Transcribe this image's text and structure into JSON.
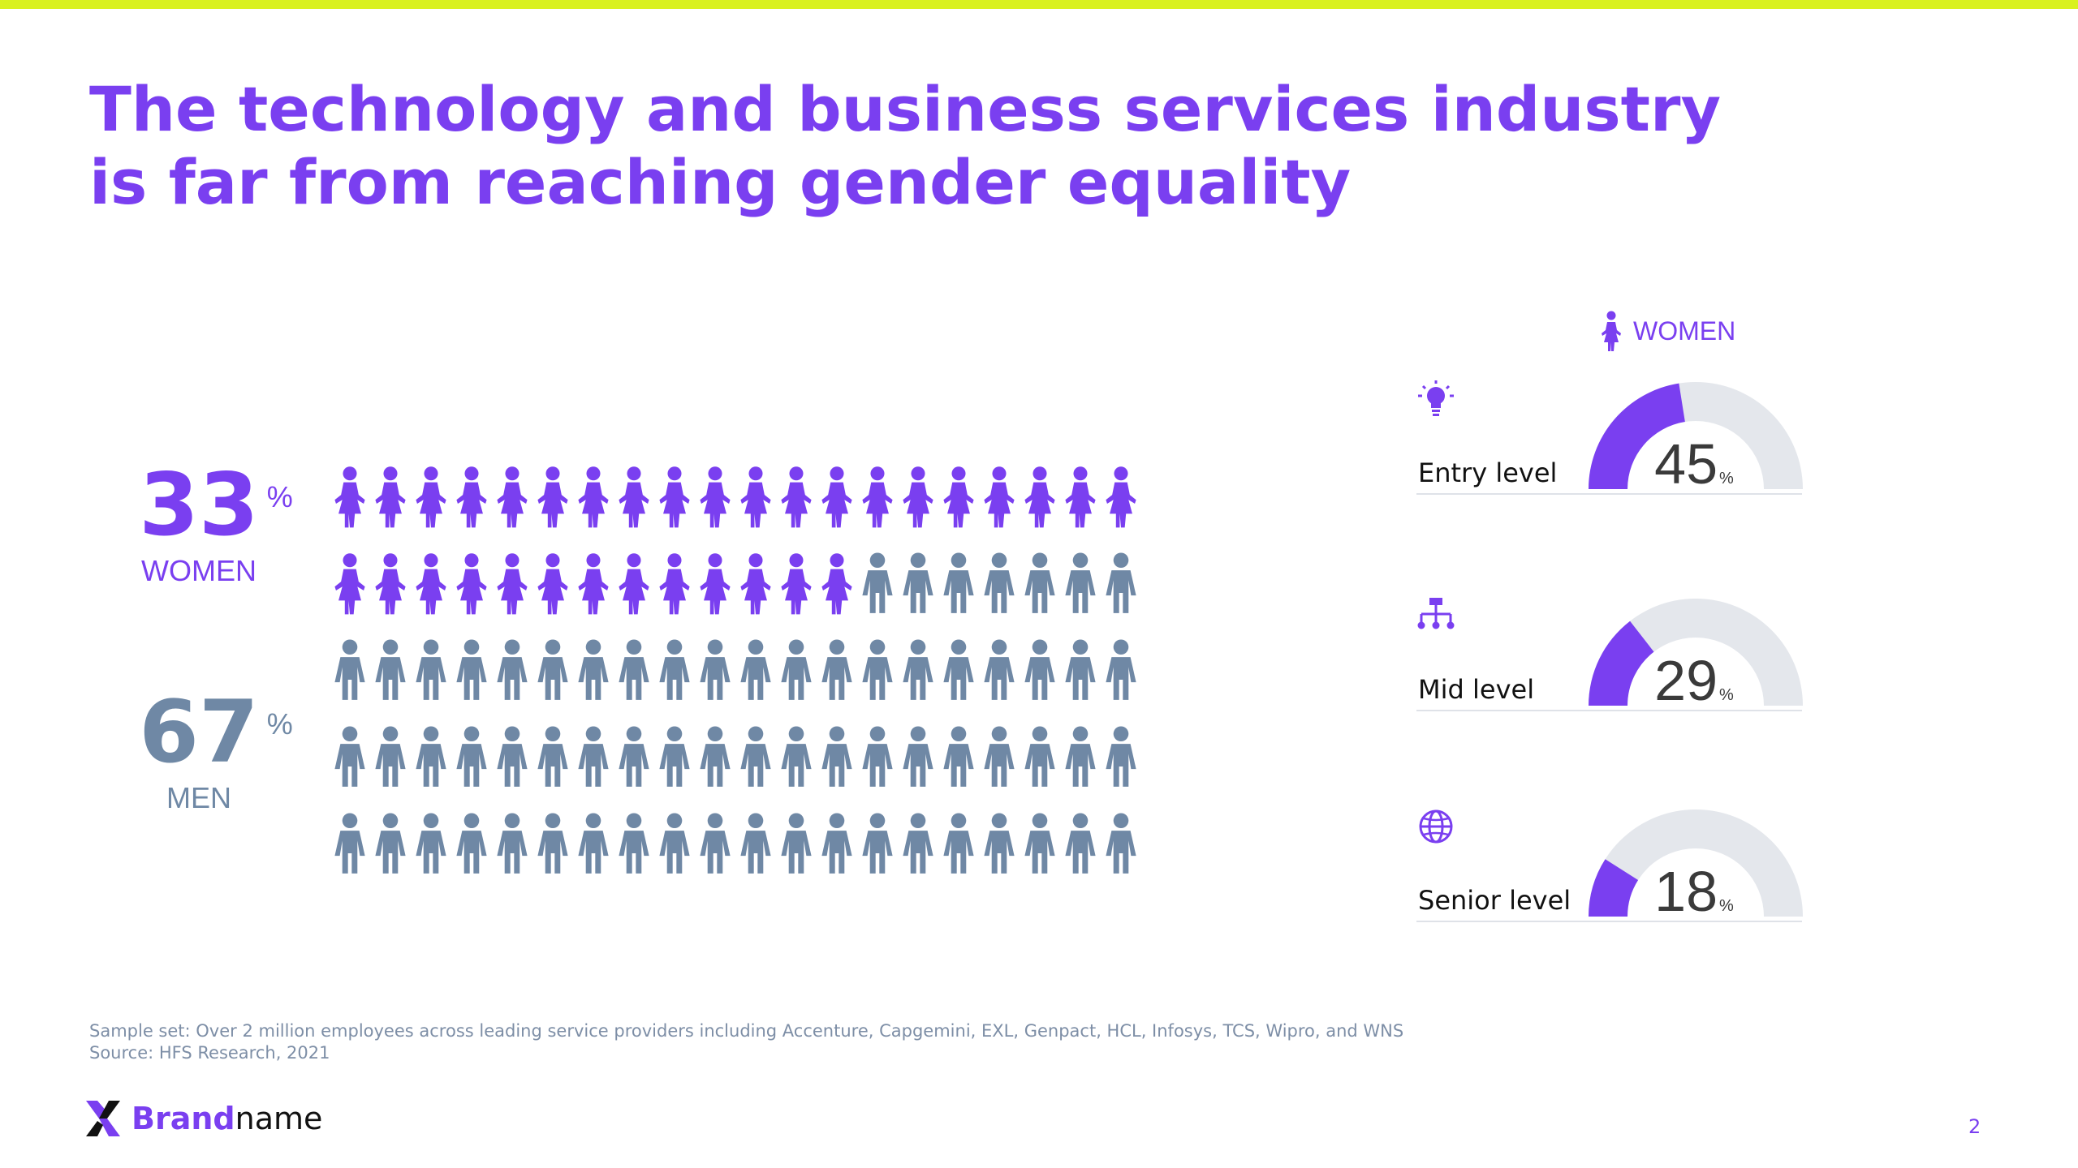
{
  "title": "The technology and business services industry is far from reaching gender equality",
  "colors": {
    "accent": "#7a3ff0",
    "men": "#6f88a5",
    "gauge_track": "#e4e7ec",
    "top_bar": "#d9f11f"
  },
  "summary": {
    "women": {
      "value": "33",
      "unit": "%",
      "label": "WOMEN"
    },
    "men": {
      "value": "67",
      "unit": "%",
      "label": "MEN"
    }
  },
  "gauge_header": {
    "icon": "woman-icon",
    "label": "WOMEN"
  },
  "chart_data": [
    {
      "type": "pictograph",
      "total_icons": 100,
      "rows": 5,
      "columns": 20,
      "series": [
        {
          "name": "WOMEN",
          "count": 33,
          "color": "#7a3ff0"
        },
        {
          "name": "MEN",
          "count": 67,
          "color": "#6f88a5"
        }
      ]
    },
    {
      "type": "gauge",
      "unit": "%",
      "max": 100,
      "items": [
        {
          "category": "Entry level",
          "value": 45,
          "icon": "lightbulb-icon"
        },
        {
          "category": "Mid level",
          "value": 29,
          "icon": "org-chart-icon"
        },
        {
          "category": "Senior level",
          "value": 18,
          "icon": "globe-icon"
        }
      ]
    }
  ],
  "footnote": {
    "line1": "Sample set: Over 2 million employees across leading service providers including Accenture, Capgemini, EXL, Genpact, HCL, Infosys, TCS, Wipro, and WNS",
    "line2": "Source: HFS Research, 2021"
  },
  "brand": {
    "bold": "Brand",
    "regular": "name",
    "logo_icon": "brand-logo-icon"
  },
  "page_number": "2"
}
